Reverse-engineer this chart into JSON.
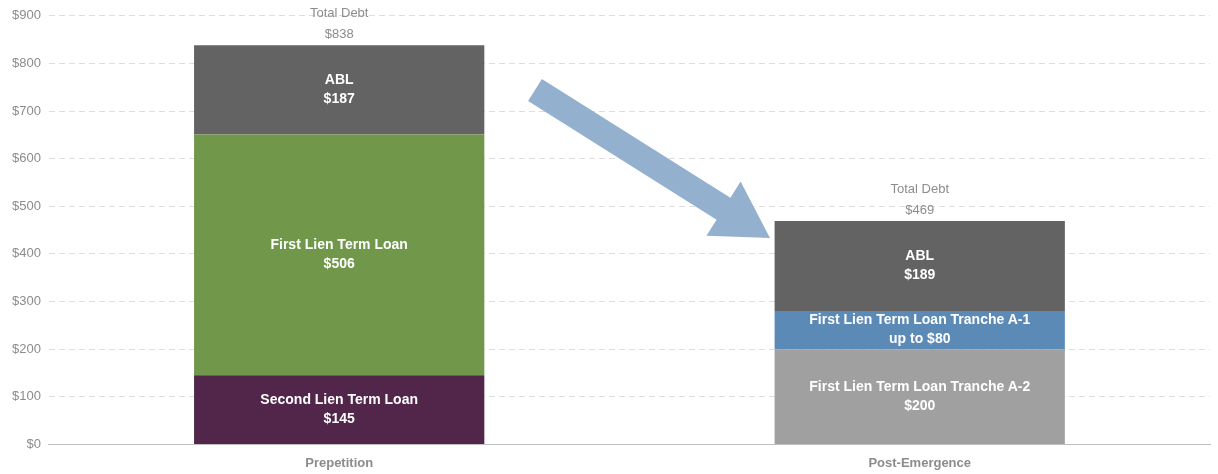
{
  "chart_data": {
    "type": "bar",
    "stacked": true,
    "categories": [
      "Prepetition",
      "Post-Emergence"
    ],
    "series": [
      {
        "colors": [
          "#52264a",
          "#a0a0a0"
        ],
        "values": [
          145,
          200
        ],
        "value_labels": [
          "Second Lien Term Loan\n$145",
          "First Lien Term Loan Tranche A-2\n$200"
        ]
      },
      {
        "colors": [
          "#70974a",
          "#5b8ab7"
        ],
        "values": [
          506,
          80
        ],
        "value_labels": [
          "First Lien Term Loan\n$506",
          "First Lien Term Loan Tranche A-1\nup to $80"
        ]
      },
      {
        "colors": [
          "#636363",
          "#636363"
        ],
        "values": [
          187,
          189
        ],
        "value_labels": [
          "ABL\n$187",
          "ABL\n$189"
        ]
      }
    ],
    "totals": [
      "Total Debt\n$838",
      "Total Debt\n$469"
    ],
    "ylim": [
      0,
      900
    ],
    "yticks": [
      {
        "value": 0,
        "label": "$0"
      },
      {
        "value": 100,
        "label": "$100"
      },
      {
        "value": 200,
        "label": "$200"
      },
      {
        "value": 300,
        "label": "$300"
      },
      {
        "value": 400,
        "label": "$400"
      },
      {
        "value": 500,
        "label": "$500"
      },
      {
        "value": 600,
        "label": "$600"
      },
      {
        "value": 700,
        "label": "$700"
      },
      {
        "value": 800,
        "label": "$800"
      },
      {
        "value": 900,
        "label": "$900"
      }
    ],
    "grid": "y",
    "legend": false
  }
}
